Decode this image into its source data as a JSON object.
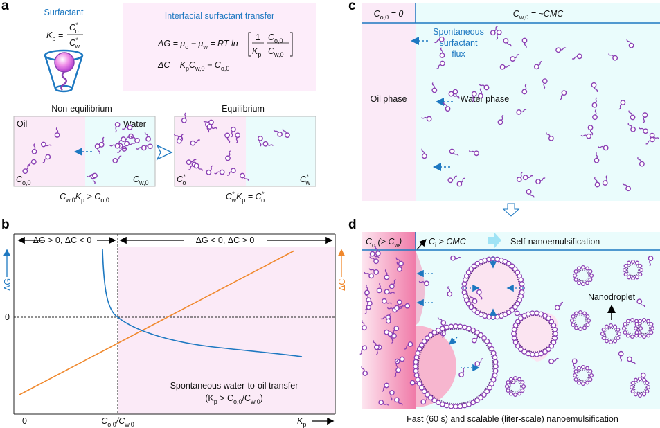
{
  "colors": {
    "blue": "#1d78c1",
    "orange": "#f0882c",
    "oil_pink": "#fbeaf7",
    "water_cyan": "#eafcfc",
    "surfactant": "#8a3fb3",
    "oil_deep": "#f28db5"
  },
  "panel_a": {
    "label": "a",
    "surfactant_title": "Surfactant",
    "kp_def_lhs": "K_{p} =",
    "kp_def_num": "C*_{o}",
    "kp_def_den": "C*_{w}",
    "transfer_title": "Interfacial surfactant transfer",
    "dG_eq": "ΔG = μ_{o} − μ_{w} = RT ln",
    "dG_frac1_num": "1",
    "dG_frac1_den": "K_{p}",
    "dG_frac2_num": "C_{o,0}",
    "dG_frac2_den": "C_{w,0}",
    "dC_eq": "ΔC = K_{p}C_{w,0} − C_{o,0}",
    "nonequilibrium": {
      "title": "Non-equilibrium",
      "oil": "Oil",
      "water": "Water",
      "c_oil": "C_{o,0}",
      "c_water": "C_{w,0}",
      "caption": "C_{w,0}K_{p} > C_{o,0}"
    },
    "equilibrium": {
      "title": "Equilibrium",
      "c_oil": "C*_{o}",
      "c_water": "C*_{w}",
      "caption": "C*_{w}K_{p} = C*_{o}"
    }
  },
  "panel_b": {
    "label": "b",
    "region_left": "ΔG > 0, ΔC < 0",
    "region_right": "ΔG < 0, ΔC > 0",
    "y_left_label": "ΔG",
    "y_right_label": "ΔC",
    "y_zero": "0",
    "x_zero": "0",
    "x_mid": "C_{o,0}/C_{w,0}",
    "x_label": "K_{p}",
    "annotation_line1": "Spontaneous water-to-oil transfer",
    "annotation_line2": "(K_{p} > C_{o,0}/C_{w,0})"
  },
  "panel_c": {
    "label": "c",
    "header_oil": "C_{o,0} = 0",
    "header_water": "C_{w,0} = ~CMC",
    "flux_line1": "Spontaneous",
    "flux_line2": "surfactant",
    "flux_line3": "flux",
    "oil_phase": "Oil phase",
    "water_phase": "Water phase"
  },
  "panel_d": {
    "label": "d",
    "header_oil": "C_{o} (> C_{w})",
    "header_interface": "C_{i} > CMC",
    "header_process": "Self-nanoemulsification",
    "nanodroplet": "Nanodroplet",
    "caption": "Fast (60 s) and scalable (liter-scale) nanoemulsification"
  }
}
